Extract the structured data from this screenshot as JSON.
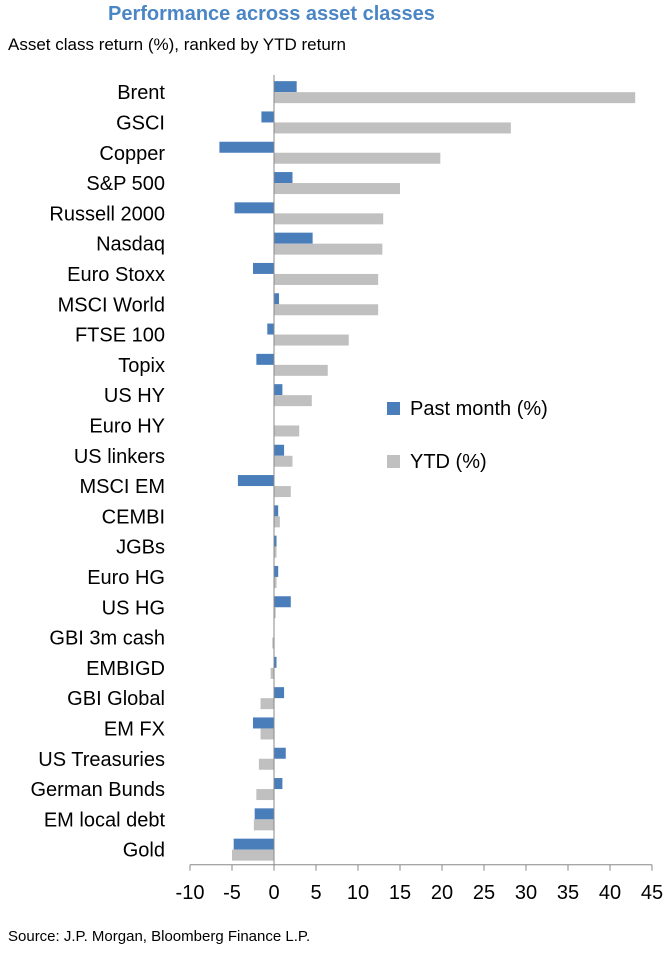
{
  "chart_data": {
    "type": "bar",
    "orientation": "horizontal",
    "title": "Performance across asset classes",
    "subtitle": "Asset class return (%), ranked by YTD return",
    "source": "Source: J.P. Morgan, Bloomberg Finance L.P.",
    "categories": [
      "Brent",
      "GSCI",
      "Copper",
      "S&P 500",
      "Russell 2000",
      "Nasdaq",
      "Euro Stoxx",
      "MSCI World",
      "FTSE 100",
      "Topix",
      "US HY",
      "Euro HY",
      "US linkers",
      "MSCI EM",
      "CEMBI",
      "JGBs",
      "Euro HG",
      "US HG",
      "GBI 3m cash",
      "EMBIGD",
      "GBI Global",
      "EM FX",
      "US Treasuries",
      "German Bunds",
      "EM local debt",
      "Gold"
    ],
    "series": [
      {
        "name": "Past month (%)",
        "color": "#4a7ebb",
        "values": [
          2.7,
          -1.5,
          -6.5,
          2.2,
          -4.7,
          4.6,
          -2.5,
          0.6,
          -0.8,
          -2.1,
          1.0,
          0.0,
          1.2,
          -4.3,
          0.5,
          0.3,
          0.5,
          2.0,
          0.0,
          0.3,
          1.2,
          -2.5,
          1.4,
          1.0,
          -2.3,
          -4.8
        ]
      },
      {
        "name": "YTD (%)",
        "color": "#c0c0c0",
        "values": [
          43.0,
          28.2,
          19.8,
          15.0,
          13.0,
          12.9,
          12.4,
          12.4,
          8.9,
          6.4,
          4.5,
          3.0,
          2.2,
          2.0,
          0.7,
          0.3,
          0.3,
          0.2,
          -0.2,
          -0.4,
          -1.6,
          -1.6,
          -1.8,
          -2.1,
          -2.4,
          -5.0
        ]
      }
    ],
    "xlim": [
      -10,
      45
    ],
    "xticks": [
      -10,
      -5,
      0,
      5,
      10,
      15,
      20,
      25,
      30,
      35,
      40,
      45
    ],
    "grid": false,
    "legend_position": "right"
  }
}
